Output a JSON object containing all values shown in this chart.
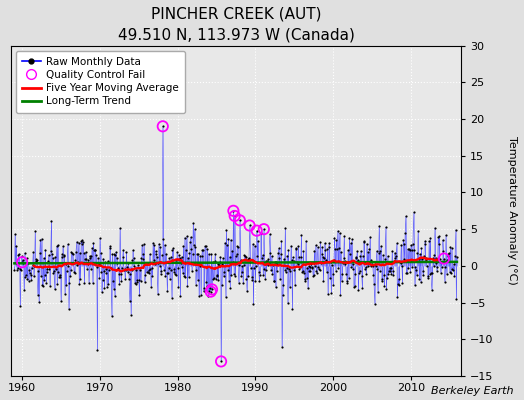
{
  "title": "PINCHER CREEK (AUT)",
  "subtitle": "49.510 N, 113.973 W (Canada)",
  "ylabel": "Temperature Anomaly (°C)",
  "credit": "Berkeley Earth",
  "xlim": [
    1958.5,
    2016.5
  ],
  "ylim": [
    -15,
    30
  ],
  "yticks": [
    -15,
    -10,
    -5,
    0,
    5,
    10,
    15,
    20,
    25,
    30
  ],
  "xticks": [
    1960,
    1970,
    1980,
    1990,
    2000,
    2010
  ],
  "bg_color": "#e0e0e0",
  "plot_bg_color": "#e8e8e8",
  "grid_color": "#cccccc",
  "bar_color": "#8888ff",
  "line_color": "blue",
  "dot_color": "black",
  "ma_color": "red",
  "trend_color": "green",
  "qc_color": "magenta",
  "title_fontsize": 11,
  "subtitle_fontsize": 9,
  "tick_fontsize": 8,
  "ylabel_fontsize": 8,
  "legend_fontsize": 7.5,
  "credit_fontsize": 8
}
